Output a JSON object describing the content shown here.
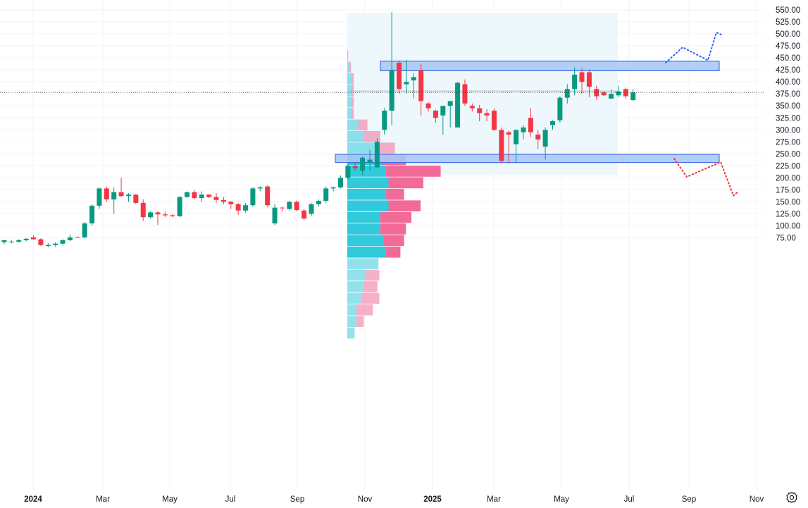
{
  "chart_data": {
    "type": "candlestick",
    "y_axis": {
      "ticks": [
        "550.00",
        "525.00",
        "500.00",
        "475.00",
        "450.00",
        "425.00",
        "400.00",
        "375.00",
        "350.00",
        "325.00",
        "300.00",
        "275.00",
        "250.00",
        "225.00",
        "200.00",
        "175.00",
        "150.00",
        "125.00",
        "100.00",
        "75.00"
      ],
      "ylim": [
        60,
        555
      ]
    },
    "x_axis": {
      "ticks": [
        {
          "label": "2024",
          "bold": true
        },
        {
          "label": "Mar",
          "bold": false
        },
        {
          "label": "May",
          "bold": false
        },
        {
          "label": "Jul",
          "bold": false
        },
        {
          "label": "Sep",
          "bold": false
        },
        {
          "label": "Nov",
          "bold": false
        },
        {
          "label": "2025",
          "bold": true
        },
        {
          "label": "Mar",
          "bold": false
        },
        {
          "label": "May",
          "bold": false
        },
        {
          "label": "Jul",
          "bold": false
        },
        {
          "label": "Sep",
          "bold": false
        },
        {
          "label": "Nov",
          "bold": false
        }
      ]
    },
    "last_price_line": 378,
    "candles": [
      {
        "o": 66,
        "h": 70,
        "l": 62,
        "c": 70
      },
      {
        "o": 66,
        "h": 70,
        "l": 64,
        "c": 67
      },
      {
        "o": 67,
        "h": 72,
        "l": 65,
        "c": 70
      },
      {
        "o": 70,
        "h": 75,
        "l": 68,
        "c": 73
      },
      {
        "o": 76,
        "h": 80,
        "l": 71,
        "c": 72
      },
      {
        "o": 72,
        "h": 74,
        "l": 58,
        "c": 60
      },
      {
        "o": 58,
        "h": 64,
        "l": 55,
        "c": 60
      },
      {
        "o": 60,
        "h": 66,
        "l": 56,
        "c": 63
      },
      {
        "o": 63,
        "h": 72,
        "l": 60,
        "c": 70
      },
      {
        "o": 70,
        "h": 82,
        "l": 68,
        "c": 76
      },
      {
        "o": 77,
        "h": 78,
        "l": 75,
        "c": 76
      },
      {
        "o": 76,
        "h": 108,
        "l": 74,
        "c": 105
      },
      {
        "o": 105,
        "h": 145,
        "l": 100,
        "c": 142
      },
      {
        "o": 142,
        "h": 180,
        "l": 135,
        "c": 178
      },
      {
        "o": 178,
        "h": 182,
        "l": 150,
        "c": 155
      },
      {
        "o": 155,
        "h": 180,
        "l": 125,
        "c": 170
      },
      {
        "o": 170,
        "h": 200,
        "l": 160,
        "c": 162
      },
      {
        "o": 162,
        "h": 168,
        "l": 150,
        "c": 165
      },
      {
        "o": 165,
        "h": 166,
        "l": 145,
        "c": 148
      },
      {
        "o": 148,
        "h": 155,
        "l": 110,
        "c": 118
      },
      {
        "o": 118,
        "h": 130,
        "l": 115,
        "c": 128
      },
      {
        "o": 128,
        "h": 130,
        "l": 102,
        "c": 124
      },
      {
        "o": 124,
        "h": 130,
        "l": 118,
        "c": 122
      },
      {
        "o": 122,
        "h": 125,
        "l": 118,
        "c": 120
      },
      {
        "o": 120,
        "h": 162,
        "l": 118,
        "c": 160
      },
      {
        "o": 160,
        "h": 172,
        "l": 158,
        "c": 170
      },
      {
        "o": 170,
        "h": 174,
        "l": 155,
        "c": 158
      },
      {
        "o": 158,
        "h": 172,
        "l": 150,
        "c": 165
      },
      {
        "o": 165,
        "h": 166,
        "l": 158,
        "c": 160
      },
      {
        "o": 160,
        "h": 168,
        "l": 148,
        "c": 154
      },
      {
        "o": 154,
        "h": 160,
        "l": 145,
        "c": 150
      },
      {
        "o": 150,
        "h": 152,
        "l": 135,
        "c": 145
      },
      {
        "o": 145,
        "h": 148,
        "l": 123,
        "c": 132
      },
      {
        "o": 132,
        "h": 148,
        "l": 128,
        "c": 143
      },
      {
        "o": 143,
        "h": 180,
        "l": 140,
        "c": 178
      },
      {
        "o": 178,
        "h": 182,
        "l": 172,
        "c": 180
      },
      {
        "o": 182,
        "h": 184,
        "l": 140,
        "c": 143
      },
      {
        "o": 105,
        "h": 145,
        "l": 102,
        "c": 138
      },
      {
        "o": 138,
        "h": 140,
        "l": 130,
        "c": 137
      },
      {
        "o": 135,
        "h": 152,
        "l": 132,
        "c": 150
      },
      {
        "o": 150,
        "h": 153,
        "l": 130,
        "c": 133
      },
      {
        "o": 132,
        "h": 135,
        "l": 112,
        "c": 115
      },
      {
        "o": 125,
        "h": 148,
        "l": 120,
        "c": 145
      },
      {
        "o": 145,
        "h": 155,
        "l": 140,
        "c": 152
      },
      {
        "o": 152,
        "h": 182,
        "l": 148,
        "c": 178
      },
      {
        "o": 178,
        "h": 182,
        "l": 172,
        "c": 180
      },
      {
        "o": 180,
        "h": 205,
        "l": 178,
        "c": 200
      },
      {
        "o": 200,
        "h": 228,
        "l": 195,
        "c": 225
      },
      {
        "o": 225,
        "h": 232,
        "l": 215,
        "c": 220
      },
      {
        "o": 215,
        "h": 245,
        "l": 205,
        "c": 242
      },
      {
        "o": 232,
        "h": 258,
        "l": 215,
        "c": 238
      },
      {
        "o": 222,
        "h": 282,
        "l": 220,
        "c": 275
      },
      {
        "o": 300,
        "h": 345,
        "l": 290,
        "c": 340
      },
      {
        "o": 340,
        "h": 545,
        "l": 310,
        "c": 425
      },
      {
        "o": 440,
        "h": 445,
        "l": 375,
        "c": 385
      },
      {
        "o": 395,
        "h": 446,
        "l": 375,
        "c": 400
      },
      {
        "o": 403,
        "h": 418,
        "l": 365,
        "c": 410
      },
      {
        "o": 425,
        "h": 438,
        "l": 330,
        "c": 360
      },
      {
        "o": 355,
        "h": 358,
        "l": 338,
        "c": 345
      },
      {
        "o": 340,
        "h": 342,
        "l": 315,
        "c": 325
      },
      {
        "o": 330,
        "h": 348,
        "l": 290,
        "c": 350
      },
      {
        "o": 350,
        "h": 358,
        "l": 305,
        "c": 360
      },
      {
        "o": 305,
        "h": 400,
        "l": 305,
        "c": 398
      },
      {
        "o": 395,
        "h": 405,
        "l": 350,
        "c": 355
      },
      {
        "o": 350,
        "h": 355,
        "l": 338,
        "c": 345
      },
      {
        "o": 345,
        "h": 352,
        "l": 318,
        "c": 335
      },
      {
        "o": 335,
        "h": 343,
        "l": 318,
        "c": 330
      },
      {
        "o": 340,
        "h": 345,
        "l": 298,
        "c": 300
      },
      {
        "o": 300,
        "h": 305,
        "l": 230,
        "c": 235
      },
      {
        "o": 295,
        "h": 298,
        "l": 230,
        "c": 290
      },
      {
        "o": 270,
        "h": 300,
        "l": 232,
        "c": 300
      },
      {
        "o": 295,
        "h": 310,
        "l": 280,
        "c": 305
      },
      {
        "o": 325,
        "h": 345,
        "l": 285,
        "c": 295
      },
      {
        "o": 290,
        "h": 300,
        "l": 260,
        "c": 280
      },
      {
        "o": 265,
        "h": 305,
        "l": 238,
        "c": 300
      },
      {
        "o": 310,
        "h": 320,
        "l": 300,
        "c": 318
      },
      {
        "o": 320,
        "h": 370,
        "l": 315,
        "c": 367
      },
      {
        "o": 367,
        "h": 395,
        "l": 355,
        "c": 385
      },
      {
        "o": 385,
        "h": 430,
        "l": 372,
        "c": 415
      },
      {
        "o": 420,
        "h": 428,
        "l": 375,
        "c": 400
      },
      {
        "o": 420,
        "h": 426,
        "l": 368,
        "c": 390
      },
      {
        "o": 385,
        "h": 392,
        "l": 362,
        "c": 370
      },
      {
        "o": 378,
        "h": 380,
        "l": 370,
        "c": 372
      },
      {
        "o": 365,
        "h": 385,
        "l": 365,
        "c": 375
      },
      {
        "o": 372,
        "h": 392,
        "l": 368,
        "c": 380
      },
      {
        "o": 385,
        "h": 388,
        "l": 365,
        "c": 370
      },
      {
        "o": 362,
        "h": 385,
        "l": 360,
        "c": 378
      }
    ],
    "volume_profile": {
      "price_levels": [
        550,
        537,
        525,
        512,
        500,
        487,
        475,
        462,
        450,
        437,
        425,
        412,
        400,
        387,
        375,
        362,
        350,
        337,
        325,
        312,
        300,
        287,
        275,
        262,
        250,
        237,
        225,
        212
      ],
      "up": [
        0,
        0,
        0,
        0,
        3,
        5,
        5,
        5,
        5,
        12,
        18,
        32,
        38,
        42,
        45,
        42,
        45,
        36,
        36,
        40,
        42,
        34,
        20,
        18,
        15,
        10,
        10,
        8
      ],
      "down": [
        0,
        0,
        0,
        1,
        1,
        2,
        2,
        2,
        2,
        10,
        18,
        20,
        26,
        60,
        38,
        20,
        35,
        34,
        28,
        22,
        16,
        0,
        15,
        15,
        20,
        18,
        8,
        0
      ]
    },
    "zones": {
      "supply": [
        423,
        443
      ],
      "demand": [
        232,
        249
      ]
    },
    "range_box": [
      205,
      544
    ],
    "poc_price": 381,
    "projections": {
      "bullish": [
        [
          440,
          0
        ],
        [
          472,
          8
        ],
        [
          445,
          20
        ],
        [
          503,
          24
        ],
        [
          497,
          27
        ]
      ],
      "bearish": [
        [
          240,
          0
        ],
        [
          202,
          6
        ],
        [
          233,
          22
        ],
        [
          163,
          28
        ],
        [
          170,
          30
        ]
      ]
    },
    "colors": {
      "up": "#089981",
      "down": "#f23645",
      "zone_fill": "#a9c9f5",
      "zone_stroke": "#2f5ce6",
      "range_fill": "#eef8fc",
      "vp_up": "#26c6da",
      "vp_down": "#f06292",
      "proj_bull": "#2962ff",
      "proj_bear": "#e53935",
      "grid": "#f0f3fa",
      "last_line": "#131722"
    }
  },
  "toolbar": {
    "settings_icon": "settings-icon"
  }
}
